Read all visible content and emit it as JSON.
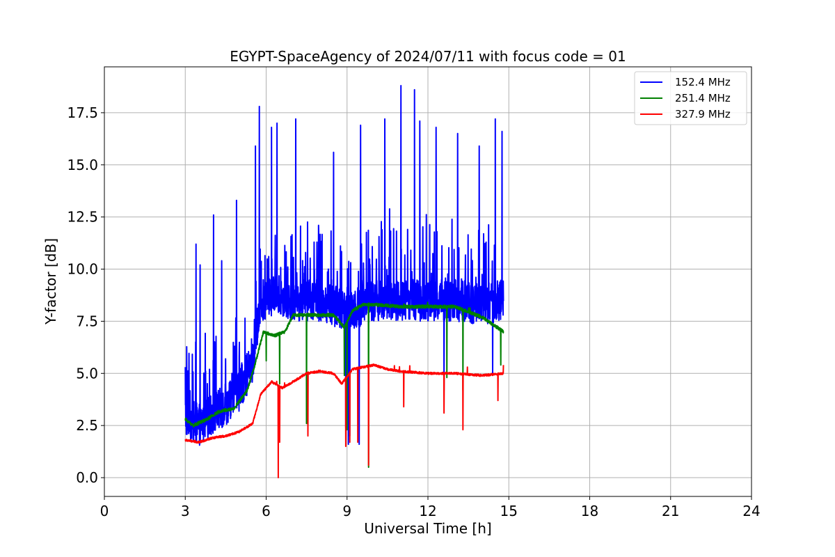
{
  "chart_data": {
    "type": "line",
    "title": "EGYPT-SpaceAgency of 2024/07/11 with focus code = 01",
    "xlabel": "Universal Time [h]",
    "ylabel": "Y-factor [dB]",
    "xlim": [
      0,
      24
    ],
    "ylim": [
      -0.9,
      19.7
    ],
    "xticks": [
      0,
      3,
      6,
      9,
      12,
      15,
      18,
      21,
      24
    ],
    "xtick_labels": [
      "0",
      "3",
      "6",
      "9",
      "12",
      "15",
      "18",
      "21",
      "24"
    ],
    "yticks": [
      0.0,
      2.5,
      5.0,
      7.5,
      10.0,
      12.5,
      15.0,
      17.5
    ],
    "ytick_labels": [
      "0.0",
      "2.5",
      "5.0",
      "7.5",
      "10.0",
      "12.5",
      "15.0",
      "17.5"
    ],
    "grid": true,
    "legend_position": "top-right",
    "x_start": 3.0,
    "x_end": 14.8,
    "series": [
      {
        "name": "152.4 MHz",
        "color": "#0000ff",
        "baseline": [
          [
            3.0,
            3.0
          ],
          [
            3.5,
            2.5
          ],
          [
            4.0,
            3.0
          ],
          [
            4.5,
            3.5
          ],
          [
            5.0,
            4.2
          ],
          [
            5.5,
            5.5
          ],
          [
            5.8,
            8.5
          ],
          [
            6.5,
            8.8
          ],
          [
            7.0,
            8.5
          ],
          [
            8.0,
            8.5
          ],
          [
            9.0,
            8.0
          ],
          [
            10.0,
            8.5
          ],
          [
            11.0,
            8.5
          ],
          [
            12.0,
            8.5
          ],
          [
            13.0,
            8.5
          ],
          [
            14.0,
            8.3
          ],
          [
            14.8,
            8.5
          ]
        ],
        "noise": 2.0,
        "spike_rate": 0.12,
        "spike_height": 3.5,
        "dips": [
          [
            8.95,
            2.4
          ],
          [
            9.05,
            1.6
          ],
          [
            9.1,
            2.0
          ],
          [
            9.45,
            1.6
          ],
          [
            10.4,
            3.0
          ],
          [
            11.5,
            3.3
          ],
          [
            12.6,
            4.2
          ],
          [
            14.4,
            5.0
          ]
        ],
        "peaks": [
          [
            3.0,
            5.3
          ],
          [
            3.4,
            11.2
          ],
          [
            3.55,
            10.2
          ],
          [
            4.05,
            12.6
          ],
          [
            4.35,
            10.4
          ],
          [
            4.9,
            13.3
          ],
          [
            5.6,
            15.9
          ],
          [
            5.75,
            17.8
          ],
          [
            6.2,
            16.8
          ],
          [
            6.4,
            17.0
          ],
          [
            7.1,
            17.2
          ],
          [
            8.5,
            15.6
          ],
          [
            9.5,
            16.9
          ],
          [
            10.4,
            17.2
          ],
          [
            11.0,
            18.8
          ],
          [
            11.5,
            18.6
          ],
          [
            11.7,
            17.1
          ],
          [
            12.3,
            16.8
          ],
          [
            13.1,
            16.5
          ],
          [
            13.9,
            15.9
          ],
          [
            14.5,
            17.2
          ],
          [
            14.75,
            16.6
          ]
        ]
      },
      {
        "name": "251.4 MHz",
        "color": "#008000",
        "baseline": [
          [
            3.0,
            2.8
          ],
          [
            3.3,
            2.5
          ],
          [
            3.8,
            2.8
          ],
          [
            4.3,
            3.2
          ],
          [
            4.8,
            3.3
          ],
          [
            5.3,
            4.2
          ],
          [
            5.6,
            5.5
          ],
          [
            5.9,
            7.0
          ],
          [
            6.3,
            6.8
          ],
          [
            6.7,
            7.0
          ],
          [
            7.0,
            7.8
          ],
          [
            7.5,
            7.8
          ],
          [
            8.0,
            7.8
          ],
          [
            8.5,
            7.8
          ],
          [
            8.9,
            7.2
          ],
          [
            9.2,
            8.0
          ],
          [
            9.6,
            8.3
          ],
          [
            10.0,
            8.3
          ],
          [
            11.0,
            8.2
          ],
          [
            12.0,
            8.2
          ],
          [
            13.0,
            8.2
          ],
          [
            14.0,
            7.7
          ],
          [
            14.8,
            7.0
          ]
        ],
        "noise": 0.15,
        "spike_rate": 0.004,
        "spike_height": 0.5,
        "dips": [
          [
            6.0,
            5.6
          ],
          [
            6.5,
            4.5
          ],
          [
            7.5,
            2.6
          ],
          [
            8.9,
            4.9
          ],
          [
            9.0,
            2.3
          ],
          [
            9.8,
            0.5
          ],
          [
            12.7,
            4.8
          ],
          [
            13.3,
            4.2
          ],
          [
            14.7,
            5.4
          ]
        ],
        "peaks": []
      },
      {
        "name": "327.9 MHz",
        "color": "#ff0000",
        "baseline": [
          [
            3.0,
            1.8
          ],
          [
            3.5,
            1.7
          ],
          [
            4.0,
            1.9
          ],
          [
            4.5,
            2.0
          ],
          [
            5.0,
            2.2
          ],
          [
            5.5,
            2.6
          ],
          [
            5.8,
            4.0
          ],
          [
            6.2,
            4.6
          ],
          [
            6.6,
            4.3
          ],
          [
            7.0,
            4.6
          ],
          [
            7.5,
            5.0
          ],
          [
            8.0,
            5.1
          ],
          [
            8.5,
            5.0
          ],
          [
            8.8,
            4.5
          ],
          [
            9.2,
            5.2
          ],
          [
            9.6,
            5.3
          ],
          [
            10.0,
            5.4
          ],
          [
            10.5,
            5.2
          ],
          [
            11.0,
            5.1
          ],
          [
            12.0,
            5.0
          ],
          [
            13.0,
            5.0
          ],
          [
            14.0,
            4.9
          ],
          [
            14.8,
            5.0
          ]
        ],
        "noise": 0.1,
        "spike_rate": 0.004,
        "spike_height": 0.4,
        "dips": [
          [
            6.45,
            0.0
          ],
          [
            6.5,
            1.7
          ],
          [
            7.55,
            2.0
          ],
          [
            8.95,
            1.5
          ],
          [
            9.1,
            1.7
          ],
          [
            9.4,
            1.7
          ],
          [
            9.8,
            0.6
          ],
          [
            11.1,
            3.4
          ],
          [
            12.6,
            3.1
          ],
          [
            13.3,
            2.3
          ],
          [
            14.6,
            3.7
          ]
        ],
        "peaks": [
          [
            14.8,
            5.4
          ]
        ]
      }
    ]
  }
}
